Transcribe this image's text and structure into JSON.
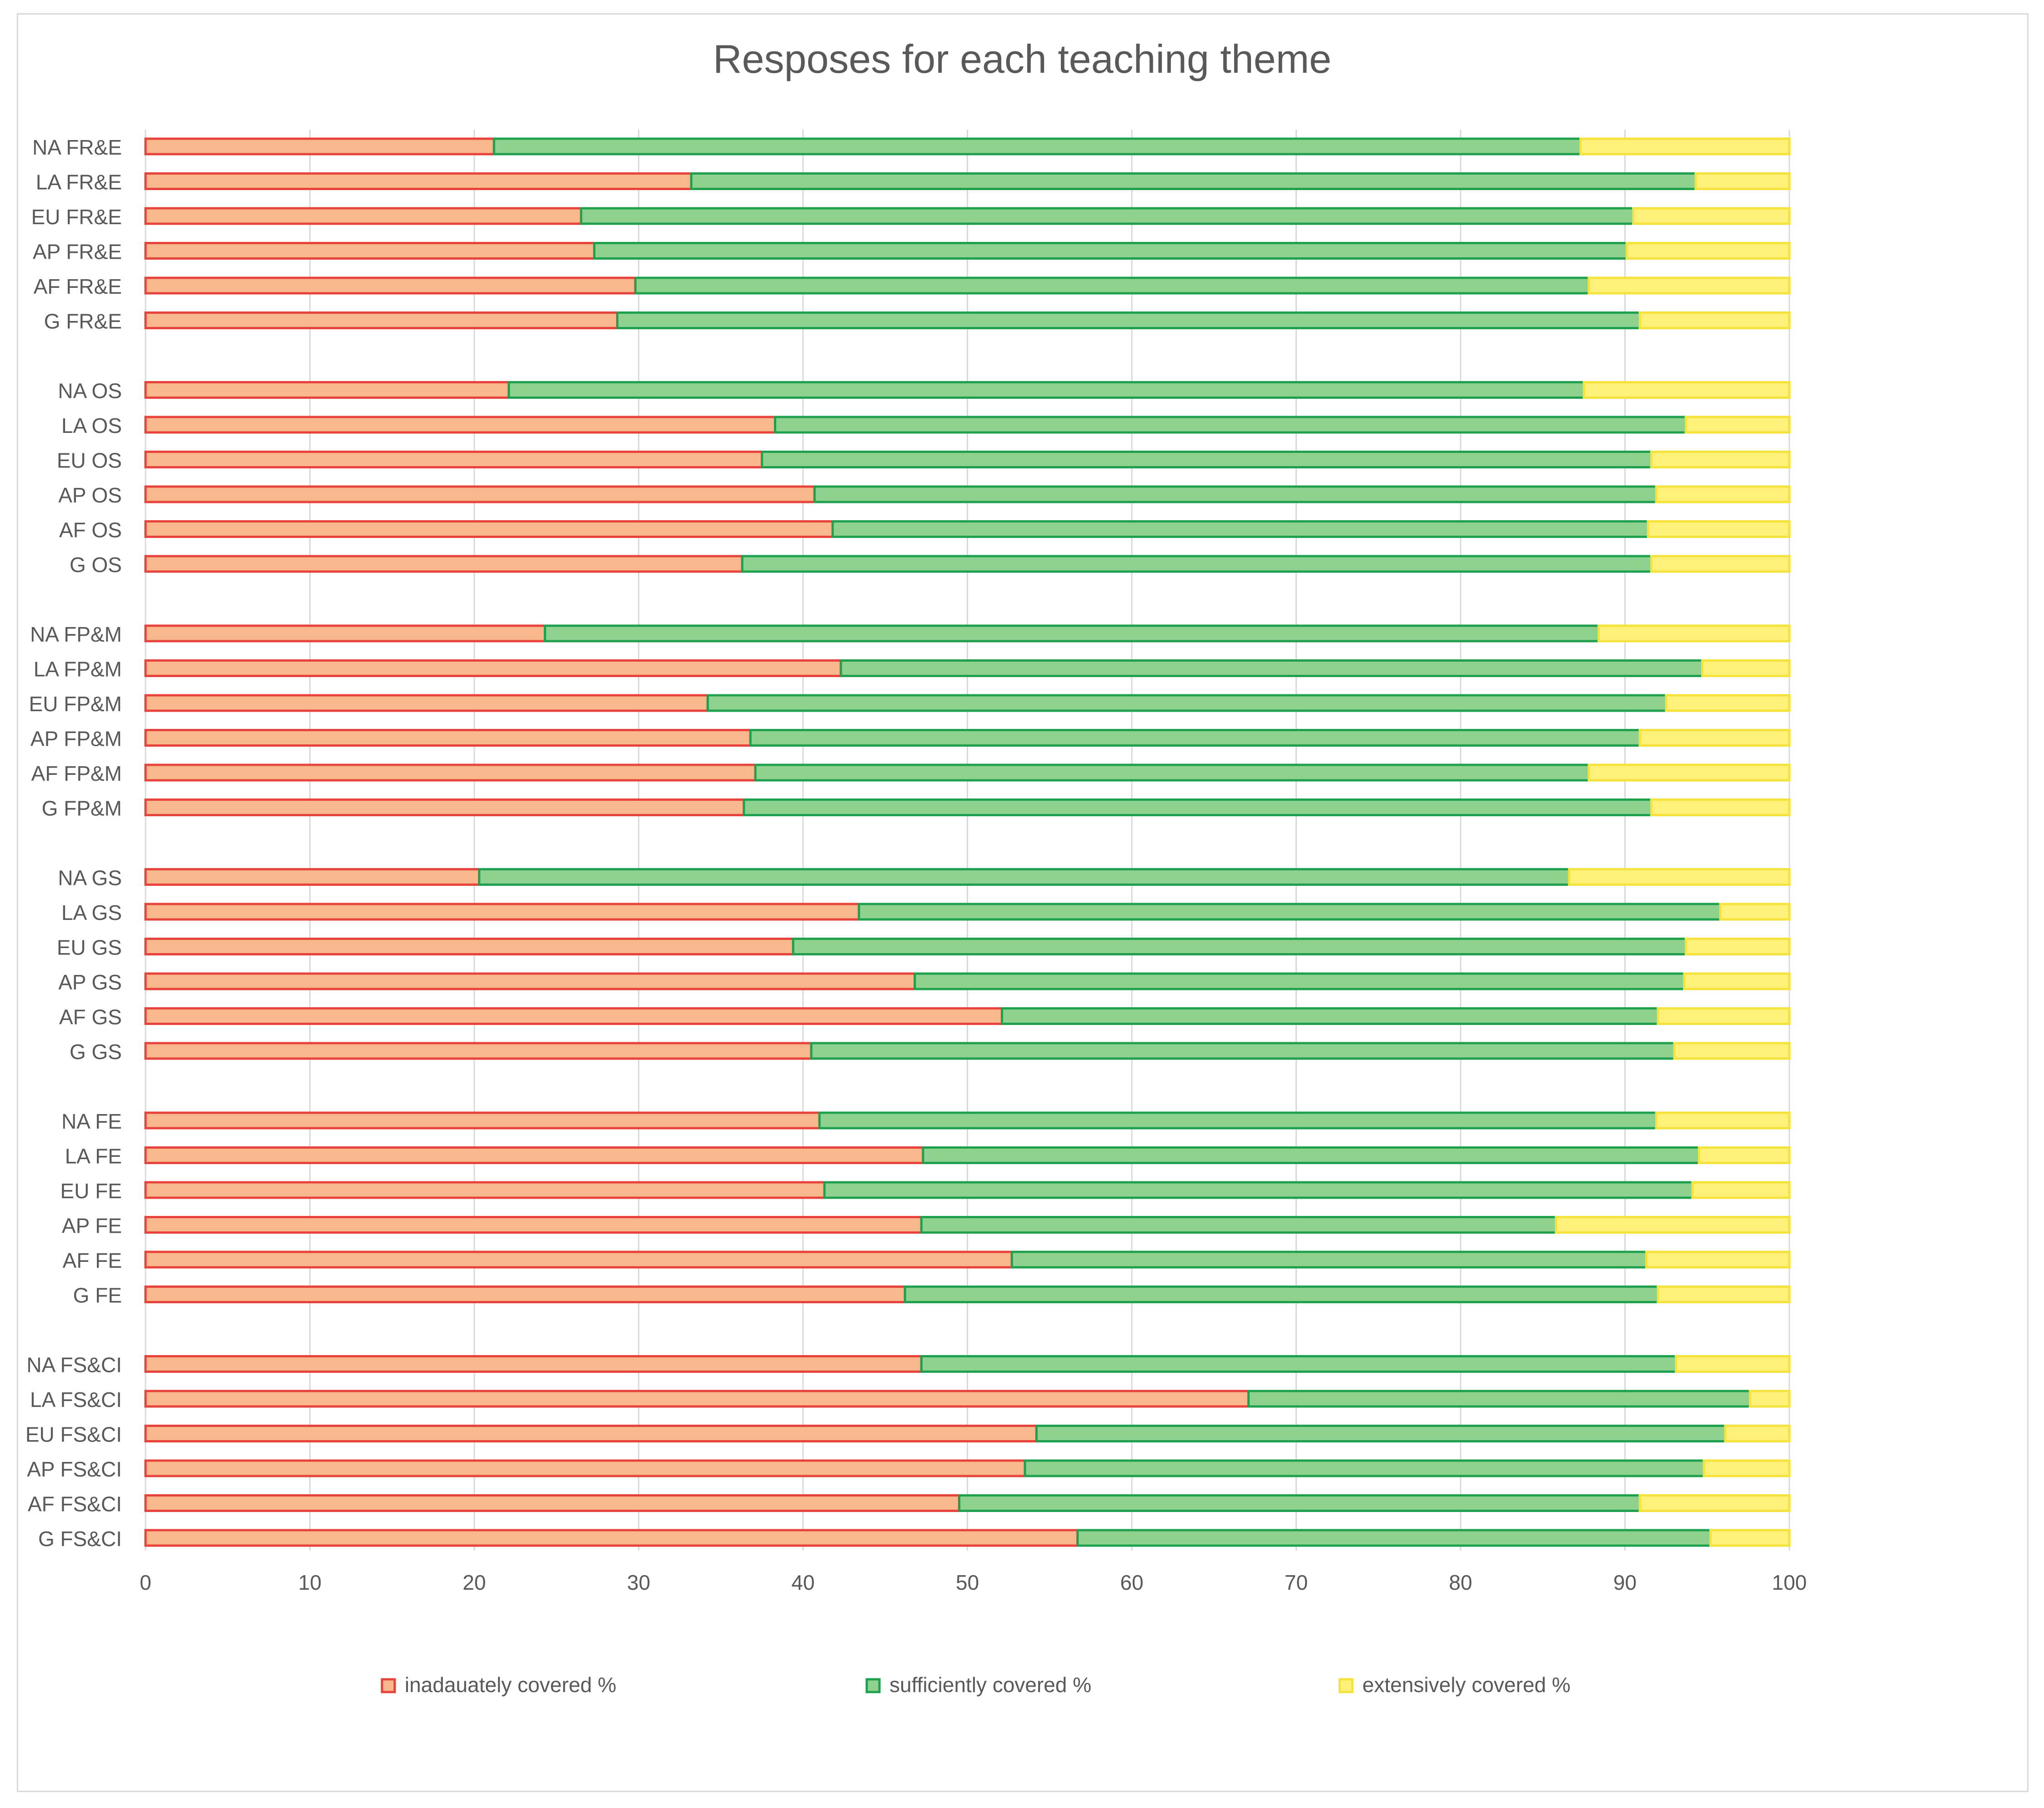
{
  "chart_data": {
    "type": "bar",
    "orientation": "horizontal",
    "stacked": true,
    "title": "Resposes for each teaching theme",
    "xlabel": "",
    "ylabel": "",
    "xlim": [
      0,
      100
    ],
    "x_ticks": [
      0,
      10,
      20,
      30,
      40,
      50,
      60,
      70,
      80,
      90,
      100
    ],
    "grid": true,
    "legend_position": "bottom",
    "categories": [
      "NA FR&E",
      "LA FR&E",
      "EU FR&E",
      "AP FR&E",
      "AF FR&E",
      "G FR&E",
      "NA OS",
      "LA OS",
      "EU OS",
      "AP OS",
      "AF OS",
      "G OS",
      "NA FP&M",
      "LA FP&M",
      "EU FP&M",
      "AP FP&M",
      "AF FP&M",
      "G FP&M",
      "NA GS",
      "LA GS",
      "EU GS",
      "AP GS",
      "AF GS",
      "G GS",
      "NA FE",
      "LA FE",
      "EU FE",
      "AP FE",
      "AF FE",
      "G FE",
      "NA FS&CI",
      "LA FS&CI",
      "EU FS&CI",
      "AP FS&CI",
      "AF FS&CI",
      "G FS&CI"
    ],
    "group_size": 6,
    "series": [
      {
        "name": "inadauately covered %",
        "fill": "#f8b88b",
        "stroke": "#e8423c",
        "values": [
          21.2,
          33.2,
          26.5,
          27.3,
          29.8,
          28.7,
          22.1,
          38.3,
          37.5,
          40.7,
          41.8,
          36.3,
          24.3,
          42.3,
          34.2,
          36.8,
          37.1,
          36.4,
          20.3,
          43.4,
          39.4,
          46.8,
          52.1,
          40.5,
          41.0,
          47.3,
          41.3,
          47.2,
          52.7,
          46.2,
          47.2,
          67.1,
          54.2,
          53.5,
          49.5,
          56.7
        ]
      },
      {
        "name": "sufficiently covered %",
        "fill": "#8fd18f",
        "stroke": "#1fa04e",
        "values": [
          66.1,
          61.1,
          64.0,
          62.8,
          58.0,
          62.2,
          65.4,
          55.4,
          54.1,
          51.2,
          49.6,
          55.3,
          64.1,
          52.4,
          58.3,
          54.1,
          50.7,
          55.2,
          66.3,
          52.4,
          54.3,
          46.8,
          39.9,
          52.5,
          50.9,
          47.2,
          52.8,
          38.6,
          38.6,
          45.8,
          45.9,
          30.5,
          41.9,
          41.3,
          41.4,
          38.5
        ]
      },
      {
        "name": "extensively covered %",
        "fill": "#fff07a",
        "stroke": "#f5e23a",
        "values": [
          12.7,
          5.7,
          9.5,
          9.9,
          12.2,
          9.1,
          12.5,
          6.3,
          8.4,
          8.1,
          8.6,
          8.4,
          11.6,
          5.3,
          7.5,
          9.1,
          12.2,
          8.4,
          13.4,
          4.2,
          6.3,
          6.4,
          8.0,
          7.0,
          8.1,
          5.5,
          5.9,
          14.2,
          8.7,
          8.0,
          6.9,
          2.4,
          3.9,
          5.2,
          9.1,
          4.8
        ]
      }
    ]
  }
}
